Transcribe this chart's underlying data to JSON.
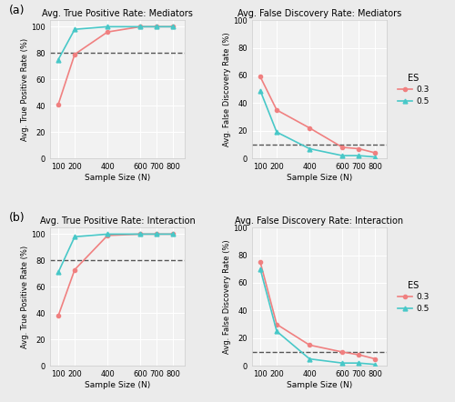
{
  "x": [
    100,
    200,
    400,
    600,
    700,
    800
  ],
  "tpr_med_03": [
    41,
    79,
    96,
    100,
    100,
    100
  ],
  "tpr_med_05": [
    75,
    98,
    100,
    100,
    100,
    100
  ],
  "fdr_med_03": [
    59,
    35,
    22,
    8,
    7,
    4
  ],
  "fdr_med_05": [
    49,
    19,
    7,
    2,
    2,
    1
  ],
  "tpr_int_03": [
    38,
    73,
    99,
    100,
    100,
    100
  ],
  "tpr_int_05": [
    71,
    98,
    100,
    100,
    100,
    100
  ],
  "fdr_int_03": [
    75,
    30,
    15,
    10,
    8,
    5
  ],
  "fdr_int_05": [
    70,
    25,
    5,
    2,
    2,
    1
  ],
  "color_03": "#F08080",
  "color_05": "#48C8C8",
  "title_tpr_med": "Avg. True Positive Rate: Mediators",
  "title_fdr_med": "Avg. False Discovery Rate: Mediators",
  "title_tpr_int": "Avg. True Positive Rate: Interaction",
  "title_fdr_int": "Avg. False Discovery Rate: Interaction",
  "ylabel_tpr": "Avg. True Positive Rate (%)",
  "ylabel_fdr": "Avg. False Discovery Rate (%)",
  "xlabel": "Sample Size (N)",
  "tpr_hline": 80,
  "fdr_hline": 10,
  "ylim_tpr": [
    0,
    105
  ],
  "ylim_fdr": [
    0,
    100
  ],
  "yticks_tpr": [
    0,
    20,
    40,
    60,
    80,
    100
  ],
  "yticks_fdr": [
    0,
    20,
    40,
    60,
    80,
    100
  ],
  "xticks": [
    100,
    200,
    400,
    600,
    700,
    800
  ],
  "legend_labels": [
    "0.3",
    "0.5"
  ],
  "fig_bg_color": "#EBEBEB",
  "ax_bg_color": "#F2F2F2",
  "grid_color": "#FFFFFF",
  "label_a": "(a)",
  "label_b": "(b)"
}
